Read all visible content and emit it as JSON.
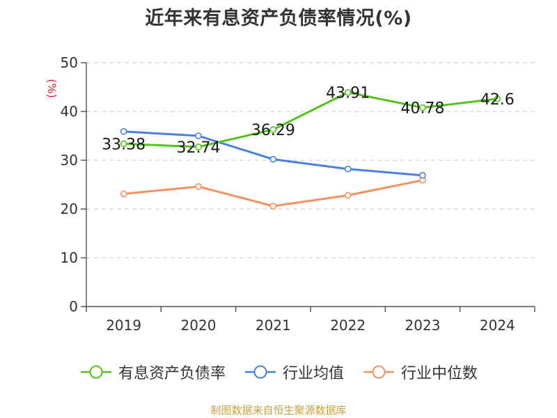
{
  "title": "近年来有息资产负债率情况(%)",
  "source": "制图数据来自恒生聚源数据库",
  "chart_data": {
    "type": "line",
    "categories": [
      "2019",
      "2020",
      "2021",
      "2022",
      "2023",
      "2024"
    ],
    "ylabel": "(%)",
    "ylim": [
      0,
      50
    ],
    "yticks": [
      0,
      10,
      20,
      30,
      40,
      50
    ],
    "grid": true,
    "legend_position": "bottom",
    "series": [
      {
        "name": "有息资产负债率",
        "color": "#52c41a",
        "values": [
          33.38,
          32.74,
          36.29,
          43.91,
          40.78,
          42.6
        ],
        "labels": [
          "33.38",
          "32.74",
          "36.29",
          "43.91",
          "40.78",
          "42.6"
        ]
      },
      {
        "name": "行业均值",
        "color": "#4a7fdc",
        "values": [
          35.9,
          35.0,
          30.2,
          28.2,
          26.9,
          null
        ]
      },
      {
        "name": "行业中位数",
        "color": "#f4915e",
        "values": [
          23.1,
          24.6,
          20.6,
          22.8,
          25.9,
          null
        ]
      }
    ]
  }
}
